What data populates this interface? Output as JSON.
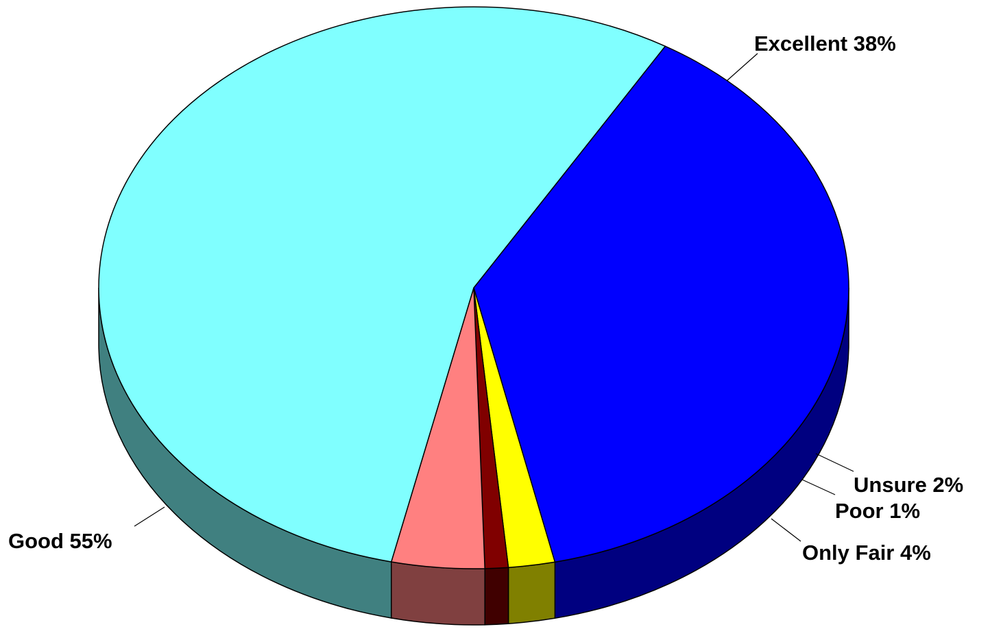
{
  "chart_data": {
    "type": "pie",
    "style": "3d",
    "title": "",
    "legend": "none",
    "slices": [
      {
        "label": "Excellent",
        "value": 38,
        "value_label": "38%",
        "color": "#0000ff",
        "side_color": "#000080"
      },
      {
        "label": "Unsure",
        "value": 2,
        "value_label": "2%",
        "color": "#ffff00",
        "side_color": "#808000"
      },
      {
        "label": "Poor",
        "value": 1,
        "value_label": "1%",
        "color": "#800000",
        "side_color": "#400000"
      },
      {
        "label": "Only Fair",
        "value": 4,
        "value_label": "4%",
        "color": "#ff8080",
        "side_color": "#804040"
      },
      {
        "label": "Good",
        "value": 55,
        "value_label": "55%",
        "color": "#80ffff",
        "side_color": "#408080"
      }
    ]
  }
}
